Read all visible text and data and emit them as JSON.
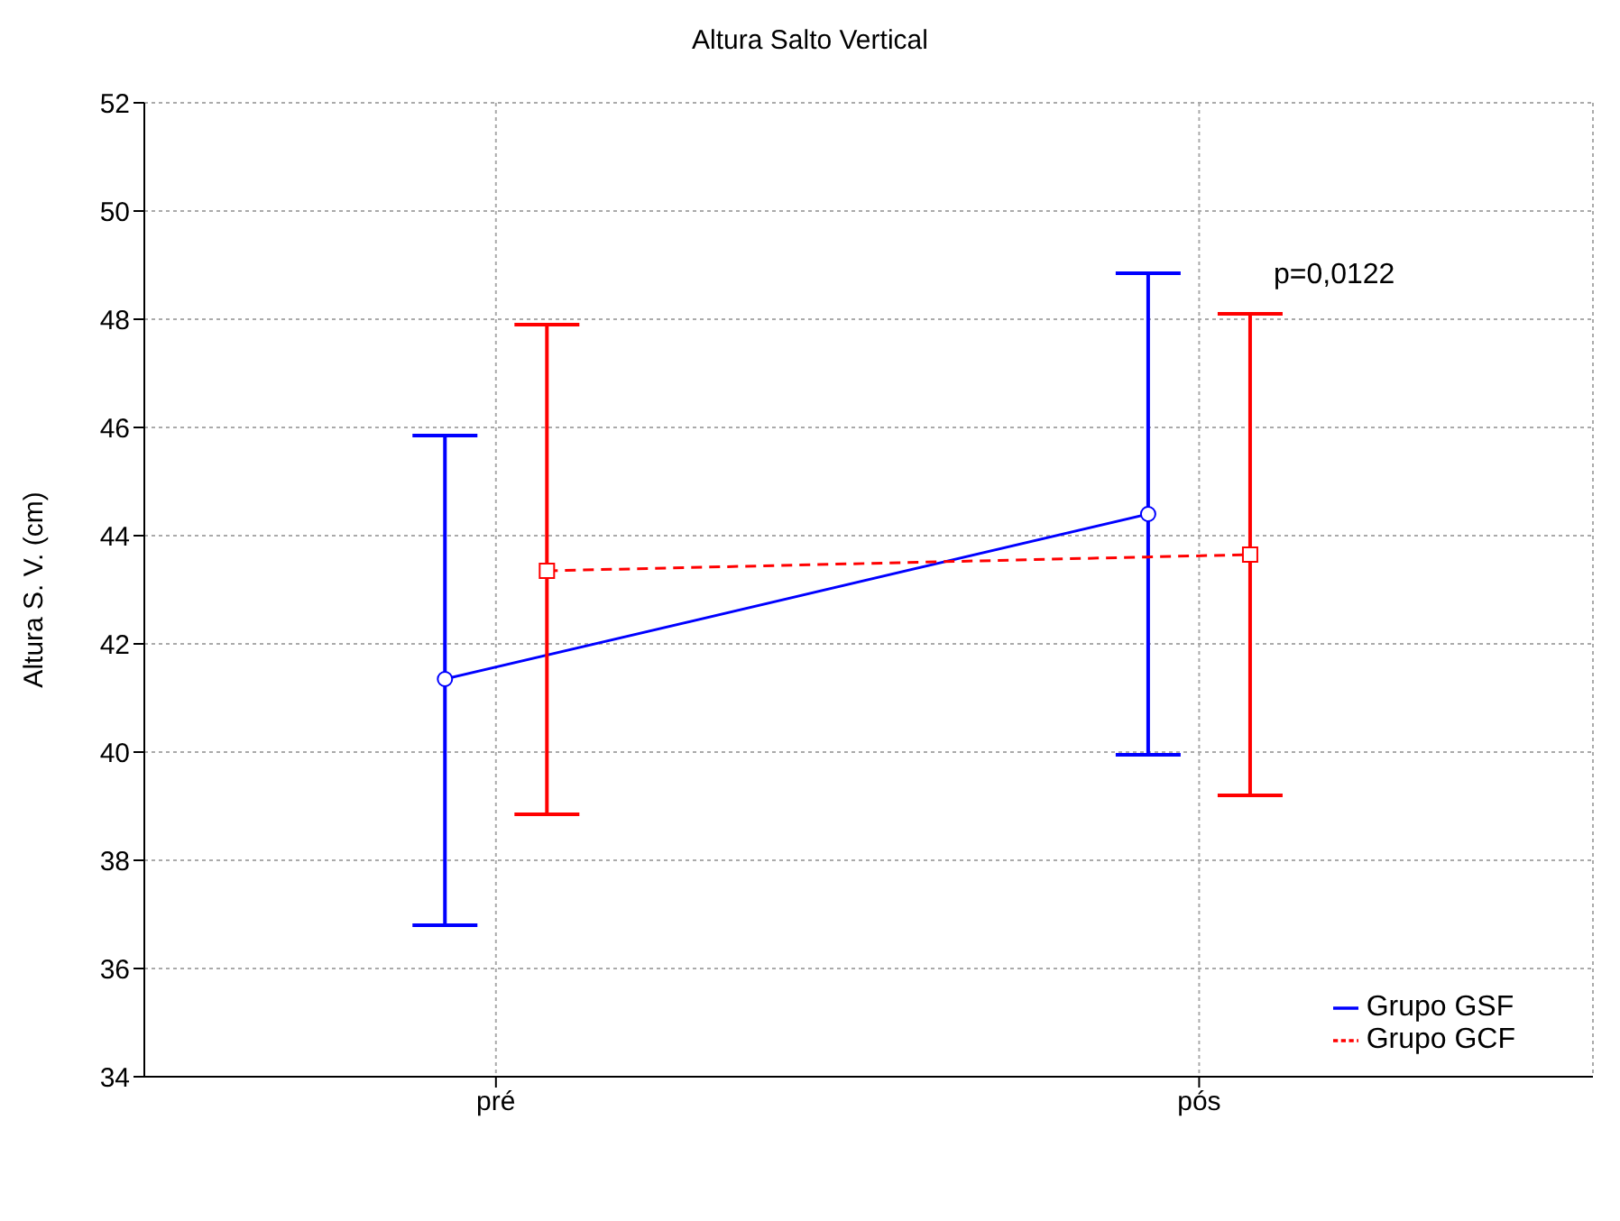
{
  "chart_data": {
    "type": "line",
    "title": "Altura Salto Vertical",
    "ylabel": "Altura S. V. (cm)",
    "categories": [
      "pré",
      "pós"
    ],
    "series": [
      {
        "name": "Grupo GSF",
        "color": "#0000ff",
        "values": [
          41.35,
          44.4
        ],
        "errors": [
          [
            36.8,
            45.85
          ],
          [
            39.95,
            48.85
          ]
        ],
        "marker": "circle",
        "line_style": "solid"
      },
      {
        "name": "Grupo GCF",
        "color": "#ff0000",
        "values": [
          43.35,
          43.65
        ],
        "errors": [
          [
            38.85,
            47.9
          ],
          [
            39.2,
            48.1
          ]
        ],
        "marker": "square",
        "line_style": "dashed"
      }
    ],
    "ylim": [
      34,
      52
    ],
    "yticks": [
      34,
      36,
      38,
      40,
      42,
      44,
      46,
      48,
      50,
      52
    ],
    "grid": true,
    "legend": "bottom right",
    "annotations": [
      "p=0,0122"
    ]
  }
}
